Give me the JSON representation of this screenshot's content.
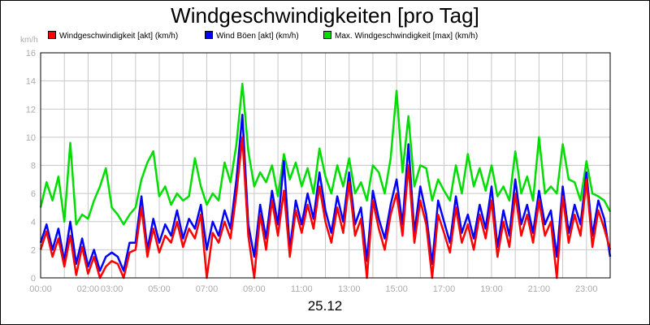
{
  "title": "Windgeschwindigkeiten [pro Tag]",
  "date": "25.12",
  "colors": {
    "background": "#ffffff",
    "grid": "#c8c8c8",
    "axis_text": "#aaaaaa"
  },
  "chart_data": {
    "type": "line",
    "title": "Windgeschwindigkeiten [pro Tag]",
    "ylabel": "km/h",
    "xlabel": "25.12",
    "ylim": [
      0,
      16
    ],
    "yticks": [
      0,
      2,
      4,
      6,
      8,
      10,
      12,
      14,
      16
    ],
    "xlim": [
      0,
      24
    ],
    "xtick_labels": [
      "00:00",
      "02:00",
      "03:00",
      "05:00",
      "07:00",
      "09:00",
      "11:00",
      "13:00",
      "15:00",
      "17:00",
      "19:00",
      "21:00",
      "23:00"
    ],
    "xtick_hours": [
      0,
      2,
      3,
      5,
      7,
      9,
      11,
      13,
      15,
      17,
      19,
      21,
      23
    ],
    "grid": true,
    "legend_position": "top-left",
    "series": [
      {
        "name": "Windgeschwindigkeit [akt] (km/h)",
        "color": "#ff0000",
        "x": [
          0.0,
          0.25,
          0.5,
          0.75,
          1.0,
          1.25,
          1.5,
          1.75,
          2.0,
          2.25,
          2.5,
          2.75,
          3.0,
          3.25,
          3.5,
          3.75,
          4.0,
          4.25,
          4.5,
          4.75,
          5.0,
          5.25,
          5.5,
          5.75,
          6.0,
          6.25,
          6.5,
          6.75,
          7.0,
          7.25,
          7.5,
          7.75,
          8.0,
          8.25,
          8.5,
          8.75,
          9.0,
          9.25,
          9.5,
          9.75,
          10.0,
          10.25,
          10.5,
          10.75,
          11.0,
          11.25,
          11.5,
          11.75,
          12.0,
          12.25,
          12.5,
          12.75,
          13.0,
          13.25,
          13.5,
          13.75,
          14.0,
          14.25,
          14.5,
          14.75,
          15.0,
          15.25,
          15.5,
          15.75,
          16.0,
          16.25,
          16.5,
          16.75,
          17.0,
          17.25,
          17.5,
          17.75,
          18.0,
          18.25,
          18.5,
          18.75,
          19.0,
          19.25,
          19.5,
          19.75,
          20.0,
          20.25,
          20.5,
          20.75,
          21.0,
          21.25,
          21.5,
          21.75,
          22.0,
          22.25,
          22.5,
          22.75,
          23.0,
          23.25,
          23.5,
          23.75,
          24.0
        ],
        "values": [
          2.0,
          3.3,
          1.5,
          2.8,
          0.8,
          3.0,
          0.2,
          2.2,
          0.3,
          1.5,
          0.0,
          0.8,
          1.2,
          1.0,
          0.0,
          1.8,
          2.0,
          5.0,
          1.5,
          3.5,
          1.8,
          3.0,
          2.5,
          4.0,
          2.2,
          3.5,
          2.8,
          4.5,
          0.0,
          3.2,
          2.5,
          4.0,
          2.8,
          6.0,
          10.0,
          3.0,
          0.0,
          4.5,
          2.0,
          5.5,
          3.0,
          6.2,
          1.5,
          4.8,
          3.2,
          5.2,
          3.5,
          6.5,
          4.0,
          2.5,
          5.0,
          3.2,
          6.8,
          3.0,
          4.2,
          0.0,
          5.5,
          3.5,
          2.0,
          4.5,
          6.0,
          3.0,
          8.0,
          2.5,
          5.5,
          3.8,
          0.0,
          4.5,
          3.2,
          1.8,
          5.0,
          2.5,
          3.8,
          2.0,
          4.5,
          2.8,
          5.5,
          1.5,
          4.0,
          2.2,
          6.0,
          3.0,
          4.5,
          2.5,
          5.5,
          3.0,
          4.0,
          0.0,
          5.8,
          2.5,
          4.5,
          3.0,
          7.0,
          2.2,
          4.8,
          3.5,
          2.0
        ]
      },
      {
        "name": "Wind Böen [akt] (km/h)",
        "color": "#0000ff",
        "x": [
          0.0,
          0.25,
          0.5,
          0.75,
          1.0,
          1.25,
          1.5,
          1.75,
          2.0,
          2.25,
          2.5,
          2.75,
          3.0,
          3.25,
          3.5,
          3.75,
          4.0,
          4.25,
          4.5,
          4.75,
          5.0,
          5.25,
          5.5,
          5.75,
          6.0,
          6.25,
          6.5,
          6.75,
          7.0,
          7.25,
          7.5,
          7.75,
          8.0,
          8.25,
          8.5,
          8.75,
          9.0,
          9.25,
          9.5,
          9.75,
          10.0,
          10.25,
          10.5,
          10.75,
          11.0,
          11.25,
          11.5,
          11.75,
          12.0,
          12.25,
          12.5,
          12.75,
          13.0,
          13.25,
          13.5,
          13.75,
          14.0,
          14.25,
          14.5,
          14.75,
          15.0,
          15.25,
          15.5,
          15.75,
          16.0,
          16.25,
          16.5,
          16.75,
          17.0,
          17.25,
          17.5,
          17.75,
          18.0,
          18.25,
          18.5,
          18.75,
          19.0,
          19.25,
          19.5,
          19.75,
          20.0,
          20.25,
          20.5,
          20.75,
          21.0,
          21.25,
          21.5,
          21.75,
          22.0,
          22.25,
          22.5,
          22.75,
          23.0,
          23.25,
          23.5,
          23.75,
          24.0
        ],
        "values": [
          2.5,
          3.8,
          2.0,
          3.5,
          1.2,
          4.0,
          1.0,
          2.8,
          0.8,
          2.0,
          0.5,
          1.5,
          1.8,
          1.5,
          0.5,
          2.5,
          2.5,
          5.8,
          2.0,
          4.2,
          2.5,
          3.8,
          3.0,
          4.8,
          2.8,
          4.2,
          3.5,
          5.2,
          2.0,
          4.0,
          3.0,
          4.8,
          3.5,
          7.0,
          11.6,
          3.8,
          1.5,
          5.2,
          2.8,
          6.2,
          3.8,
          8.3,
          2.0,
          5.5,
          3.8,
          6.0,
          4.2,
          7.5,
          4.8,
          3.2,
          5.8,
          4.0,
          7.5,
          3.8,
          5.0,
          1.2,
          6.2,
          4.2,
          2.8,
          5.2,
          7.0,
          3.8,
          9.5,
          3.2,
          6.5,
          4.5,
          1.0,
          5.5,
          4.0,
          2.5,
          5.8,
          3.2,
          4.5,
          2.8,
          5.2,
          3.5,
          6.5,
          2.2,
          4.8,
          3.0,
          7.0,
          3.8,
          5.2,
          3.2,
          6.2,
          3.8,
          4.8,
          1.5,
          6.5,
          3.2,
          5.2,
          3.8,
          7.5,
          3.0,
          5.5,
          4.2,
          1.5
        ]
      },
      {
        "name": "Max. Windgeschwindigkeit [max] (km/h)",
        "color": "#00dd00",
        "x": [
          0.0,
          0.25,
          0.5,
          0.75,
          1.0,
          1.25,
          1.5,
          1.75,
          2.0,
          2.25,
          2.5,
          2.75,
          3.0,
          3.25,
          3.5,
          3.75,
          4.0,
          4.25,
          4.5,
          4.75,
          5.0,
          5.25,
          5.5,
          5.75,
          6.0,
          6.25,
          6.5,
          6.75,
          7.0,
          7.25,
          7.5,
          7.75,
          8.0,
          8.25,
          8.5,
          8.75,
          9.0,
          9.25,
          9.5,
          9.75,
          10.0,
          10.25,
          10.5,
          10.75,
          11.0,
          11.25,
          11.5,
          11.75,
          12.0,
          12.25,
          12.5,
          12.75,
          13.0,
          13.25,
          13.5,
          13.75,
          14.0,
          14.25,
          14.5,
          14.75,
          15.0,
          15.25,
          15.5,
          15.75,
          16.0,
          16.25,
          16.5,
          16.75,
          17.0,
          17.25,
          17.5,
          17.75,
          18.0,
          18.25,
          18.5,
          18.75,
          19.0,
          19.25,
          19.5,
          19.75,
          20.0,
          20.25,
          20.5,
          20.75,
          21.0,
          21.25,
          21.5,
          21.75,
          22.0,
          22.25,
          22.5,
          22.75,
          23.0,
          23.25,
          23.5,
          23.75,
          24.0
        ],
        "values": [
          5.0,
          6.8,
          5.5,
          7.2,
          4.0,
          9.6,
          3.8,
          4.5,
          4.2,
          5.5,
          6.5,
          7.8,
          5.0,
          4.5,
          3.8,
          4.5,
          5.0,
          7.0,
          8.2,
          9.0,
          5.8,
          6.5,
          5.2,
          6.0,
          5.5,
          5.8,
          8.5,
          6.5,
          5.2,
          6.0,
          5.5,
          8.2,
          6.8,
          9.5,
          13.8,
          9.0,
          6.5,
          7.5,
          6.8,
          8.0,
          5.8,
          8.8,
          7.0,
          8.2,
          6.5,
          7.8,
          6.0,
          9.2,
          7.2,
          6.0,
          8.0,
          6.5,
          8.5,
          6.0,
          6.8,
          5.5,
          8.0,
          7.5,
          6.0,
          8.5,
          13.3,
          7.5,
          11.5,
          6.5,
          8.0,
          7.8,
          5.5,
          7.0,
          6.2,
          5.5,
          8.0,
          6.0,
          8.8,
          6.5,
          7.8,
          6.2,
          8.0,
          5.8,
          6.5,
          5.5,
          9.0,
          6.0,
          7.2,
          5.5,
          10.0,
          6.0,
          6.5,
          6.0,
          9.5,
          7.0,
          6.8,
          5.5,
          8.3,
          6.0,
          5.8,
          5.5,
          4.7
        ]
      }
    ]
  }
}
